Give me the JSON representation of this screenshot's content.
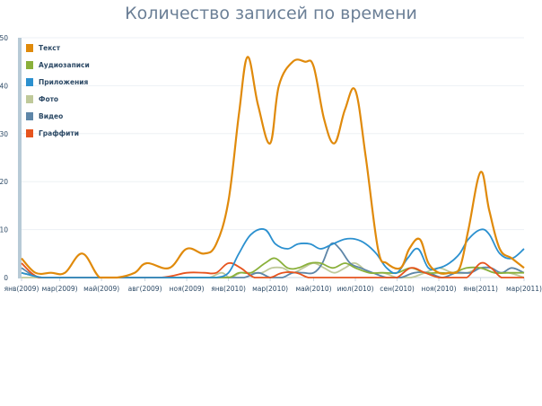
{
  "chart_data": {
    "type": "line",
    "title": "Количество записей по времени",
    "ylim": [
      0,
      50
    ],
    "y_ticks": [
      "0",
      "10",
      "20",
      "30",
      "40",
      "50"
    ],
    "x_tick_labels": [
      "янв(2009)",
      "мар(2009)",
      "май(2009)",
      "авг(2009)",
      "ноя(2009)",
      "янв(2010)",
      "мар(2010)",
      "май(2010)",
      "июл(2010)",
      "сен(2010)",
      "ноя(2010)",
      "янв(2011)",
      "мар(2011)"
    ],
    "x_tick_positions": [
      0,
      2.2,
      4.6,
      7.1,
      9.5,
      11.9,
      14.3,
      16.8,
      19.2,
      21.6,
      24.0,
      26.4,
      28.9
    ],
    "xlim": [
      0,
      28.9
    ],
    "grid": true,
    "legend_position": "top-left",
    "series": [
      {
        "name": "Текст",
        "color": "#e08a0b",
        "x": [
          0,
          0.8,
          1.7,
          2.5,
          3.5,
          4.5,
          5.5,
          6.5,
          7.2,
          8.5,
          9.5,
          10.5,
          11.2,
          11.9,
          12.5,
          13.0,
          13.6,
          14.3,
          14.8,
          15.6,
          16.3,
          16.8,
          17.4,
          18.0,
          18.6,
          19.2,
          19.8,
          20.5,
          21.0,
          21.8,
          22.3,
          22.9,
          23.4,
          24.0,
          24.6,
          25.2,
          25.7,
          26.4,
          26.9,
          27.5,
          28.2,
          28.9
        ],
        "y": [
          4,
          1,
          1,
          1,
          5,
          0,
          0,
          1,
          3,
          2,
          6,
          5,
          7,
          16,
          34,
          46,
          36,
          28,
          40,
          45,
          45,
          44,
          33,
          28,
          35,
          39,
          25,
          6,
          3,
          2,
          6,
          8,
          3,
          1,
          1,
          2,
          10,
          22,
          14,
          6,
          4,
          2
        ]
      },
      {
        "name": "Аудиозаписи",
        "color": "#8ab03a",
        "x": [
          0,
          1.2,
          2.5,
          5.0,
          8.0,
          10.5,
          11.9,
          12.5,
          13.2,
          14.0,
          14.6,
          15.3,
          15.9,
          16.6,
          17.2,
          17.9,
          18.6,
          19.2,
          20.0,
          20.8,
          21.6,
          22.4,
          23.2,
          24.0,
          24.8,
          25.6,
          26.4,
          27.2,
          28.0,
          28.9
        ],
        "y": [
          1,
          0,
          0,
          0,
          0,
          0,
          0,
          1,
          1,
          3,
          4,
          2,
          2,
          3,
          3,
          2,
          3,
          2,
          1,
          1,
          1,
          2,
          1,
          1,
          1,
          2,
          2,
          1,
          1,
          1
        ]
      },
      {
        "name": "Приложения",
        "color": "#2b90cf",
        "x": [
          0,
          1.2,
          2.5,
          5.0,
          8.0,
          10.5,
          11.2,
          11.9,
          12.5,
          13.2,
          14.0,
          14.6,
          15.3,
          15.9,
          16.6,
          17.2,
          17.9,
          18.6,
          19.2,
          19.8,
          20.4,
          21.0,
          21.6,
          22.2,
          22.8,
          23.4,
          24.0,
          24.6,
          25.2,
          25.7,
          26.4,
          26.9,
          27.5,
          28.2,
          28.9
        ],
        "y": [
          1,
          0,
          0,
          0,
          0,
          0,
          0,
          1,
          5,
          9,
          10,
          7,
          6,
          7,
          7,
          6,
          7,
          8,
          8,
          7,
          5,
          2,
          1,
          4,
          6,
          2,
          2,
          3,
          5,
          8,
          10,
          9,
          5,
          4,
          6
        ]
      },
      {
        "name": "Фото",
        "color": "#bfc99a",
        "x": [
          0,
          2.5,
          5.0,
          8.0,
          10.0,
          10.8,
          11.5,
          12.0,
          12.6,
          13.2,
          13.8,
          14.4,
          15.0,
          15.6,
          16.2,
          16.8,
          17.4,
          18.0,
          18.6,
          19.2,
          20.0,
          20.8,
          21.6,
          22.4,
          23.2,
          24.0,
          24.8,
          25.6,
          26.4,
          27.2,
          28.0,
          28.9
        ],
        "y": [
          0,
          0,
          0,
          0,
          0,
          0,
          1,
          0,
          1,
          1,
          1,
          2,
          2,
          1,
          2,
          3,
          2,
          1,
          2,
          3,
          1,
          1,
          0,
          0,
          1,
          2,
          1,
          1,
          2,
          1,
          1,
          0
        ]
      },
      {
        "name": "Видео",
        "color": "#5e86a8",
        "x": [
          0,
          1.0,
          2.5,
          5.0,
          8.0,
          10.5,
          11.9,
          12.8,
          13.6,
          14.3,
          15.0,
          15.6,
          16.2,
          16.8,
          17.3,
          17.8,
          18.3,
          18.9,
          19.5,
          20.2,
          21.0,
          21.8,
          22.6,
          23.4,
          24.2,
          25.0,
          25.8,
          26.4,
          27.0,
          27.6,
          28.2,
          28.9
        ],
        "y": [
          2,
          0,
          0,
          0,
          0,
          0,
          0,
          0,
          1,
          0,
          0,
          1,
          1,
          1,
          3,
          7,
          6,
          3,
          2,
          1,
          0,
          0,
          1,
          1,
          0,
          1,
          1,
          2,
          2,
          1,
          2,
          1
        ]
      },
      {
        "name": "Граффити",
        "color": "#e6541e",
        "x": [
          0,
          1.0,
          2.5,
          5.0,
          8.0,
          9.5,
          10.5,
          11.2,
          11.9,
          12.6,
          13.4,
          14.3,
          15.0,
          15.8,
          16.5,
          17.2,
          18.0,
          19.0,
          20.0,
          21.0,
          21.6,
          22.4,
          23.2,
          24.0,
          24.8,
          25.6,
          26.4,
          27.0,
          27.6,
          28.2,
          28.9
        ],
        "y": [
          3,
          0,
          0,
          0,
          0,
          1,
          1,
          1,
          3,
          2,
          0,
          0,
          1,
          1,
          0,
          0,
          0,
          0,
          0,
          0,
          0,
          2,
          1,
          0,
          0,
          0,
          3,
          2,
          0,
          0,
          0
        ]
      }
    ]
  }
}
